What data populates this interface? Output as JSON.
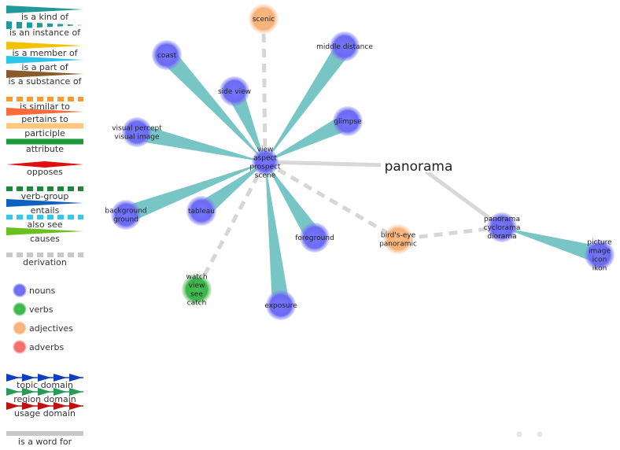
{
  "legend": {
    "relations": [
      {
        "key": "hypernym",
        "label": "is a kind of",
        "style": "wedge",
        "color": "#1f9a9a"
      },
      {
        "key": "instance",
        "label": "is an instance of",
        "style": "dashed-wedge",
        "color": "#1f9a9a"
      },
      {
        "key": "member",
        "label": "is a member of",
        "style": "wedge",
        "color": "#f2c200"
      },
      {
        "key": "part",
        "label": "is a part of",
        "style": "wedge",
        "color": "#2ec4e8"
      },
      {
        "key": "substance",
        "label": "is a substance of",
        "style": "wedge",
        "color": "#8b5a2b"
      },
      {
        "key": "similar",
        "label": "is similar to",
        "style": "dashed",
        "color": "#ff9a2e"
      },
      {
        "key": "pertains",
        "label": "pertains to",
        "style": "wedge",
        "color": "#ff6a3d"
      },
      {
        "key": "participle",
        "label": "participle",
        "style": "thick",
        "color": "#ffc878"
      },
      {
        "key": "attribute",
        "label": "attribute",
        "style": "thick",
        "color": "#1a9a3a"
      },
      {
        "key": "opposes",
        "label": "opposes",
        "style": "diamond",
        "color": "#e01010"
      },
      {
        "key": "verbgroup",
        "label": "verb-group",
        "style": "dashed",
        "color": "#1a8a3a"
      },
      {
        "key": "entails",
        "label": "entails",
        "style": "wedge",
        "color": "#1060c0"
      },
      {
        "key": "alsosee",
        "label": "also see",
        "style": "dashed",
        "color": "#2ecaf0"
      },
      {
        "key": "causes",
        "label": "causes",
        "style": "wedge",
        "color": "#6ac020"
      },
      {
        "key": "derivation",
        "label": "derivation",
        "style": "dashed",
        "color": "#c8c8c8"
      }
    ],
    "pos": [
      {
        "label": "nouns",
        "color": "#6e6ef5"
      },
      {
        "label": "verbs",
        "color": "#3cb44b"
      },
      {
        "label": "adjectives",
        "color": "#f7b47a"
      },
      {
        "label": "adverbs",
        "color": "#f56e6e"
      }
    ],
    "domains": [
      {
        "label": "topic domain",
        "color": "#1040c0"
      },
      {
        "label": "region domain",
        "color": "#2a9a5a"
      },
      {
        "label": "usage domain",
        "color": "#c01010"
      }
    ],
    "wordfor": {
      "label": "is a word for",
      "color": "#c8c8c8"
    }
  },
  "word": {
    "text": "panorama"
  },
  "nodes": [
    {
      "id": "view",
      "pos": "noun",
      "lines": [
        "view",
        "aspect",
        "prospect",
        "scene"
      ]
    },
    {
      "id": "scenic",
      "pos": "adjective",
      "lines": [
        "scenic"
      ]
    },
    {
      "id": "coast",
      "pos": "noun",
      "lines": [
        "coast"
      ]
    },
    {
      "id": "middle",
      "pos": "noun",
      "lines": [
        "middle distance"
      ]
    },
    {
      "id": "sideview",
      "pos": "noun",
      "lines": [
        "side view"
      ]
    },
    {
      "id": "glimpse",
      "pos": "noun",
      "lines": [
        "glimpse"
      ]
    },
    {
      "id": "percept",
      "pos": "noun",
      "lines": [
        "visual percept",
        "visual image"
      ]
    },
    {
      "id": "background",
      "pos": "noun",
      "lines": [
        "background",
        "ground"
      ]
    },
    {
      "id": "tableau",
      "pos": "noun",
      "lines": [
        "tableau"
      ]
    },
    {
      "id": "foreground",
      "pos": "noun",
      "lines": [
        "foreground"
      ]
    },
    {
      "id": "exposure",
      "pos": "noun",
      "lines": [
        "exposure"
      ]
    },
    {
      "id": "watch",
      "pos": "verb",
      "lines": [
        "watch",
        "view",
        "see",
        "catch"
      ]
    },
    {
      "id": "birdseye",
      "pos": "adjective",
      "lines": [
        "bird's-eye",
        "panoramic"
      ]
    },
    {
      "id": "cyclorama",
      "pos": "noun",
      "lines": [
        "panorama",
        "cyclorama",
        "diorama"
      ]
    },
    {
      "id": "picture",
      "pos": "noun",
      "lines": [
        "picture",
        "image",
        "icon",
        "ikon"
      ]
    }
  ],
  "edges": [
    {
      "from": "view",
      "to": "scenic",
      "type": "derivation"
    },
    {
      "from": "view",
      "to": "watch",
      "type": "derivation"
    },
    {
      "from": "view",
      "to": "birdseye",
      "type": "derivation"
    },
    {
      "from": "cyclorama",
      "to": "birdseye",
      "type": "derivation"
    },
    {
      "from": "view",
      "to": "word",
      "type": "wordfor"
    },
    {
      "from": "cyclorama",
      "to": "word",
      "type": "wordfor"
    },
    {
      "from": "view",
      "to": "coast",
      "type": "hypernym"
    },
    {
      "from": "view",
      "to": "middle",
      "type": "hypernym"
    },
    {
      "from": "view",
      "to": "sideview",
      "type": "hypernym"
    },
    {
      "from": "view",
      "to": "glimpse",
      "type": "hypernym"
    },
    {
      "from": "view",
      "to": "percept",
      "type": "hypernym"
    },
    {
      "from": "view",
      "to": "background",
      "type": "hypernym"
    },
    {
      "from": "view",
      "to": "tableau",
      "type": "hypernym"
    },
    {
      "from": "view",
      "to": "foreground",
      "type": "hypernym"
    },
    {
      "from": "view",
      "to": "exposure",
      "type": "hypernym"
    },
    {
      "from": "cyclorama",
      "to": "picture",
      "type": "hypernym"
    }
  ]
}
